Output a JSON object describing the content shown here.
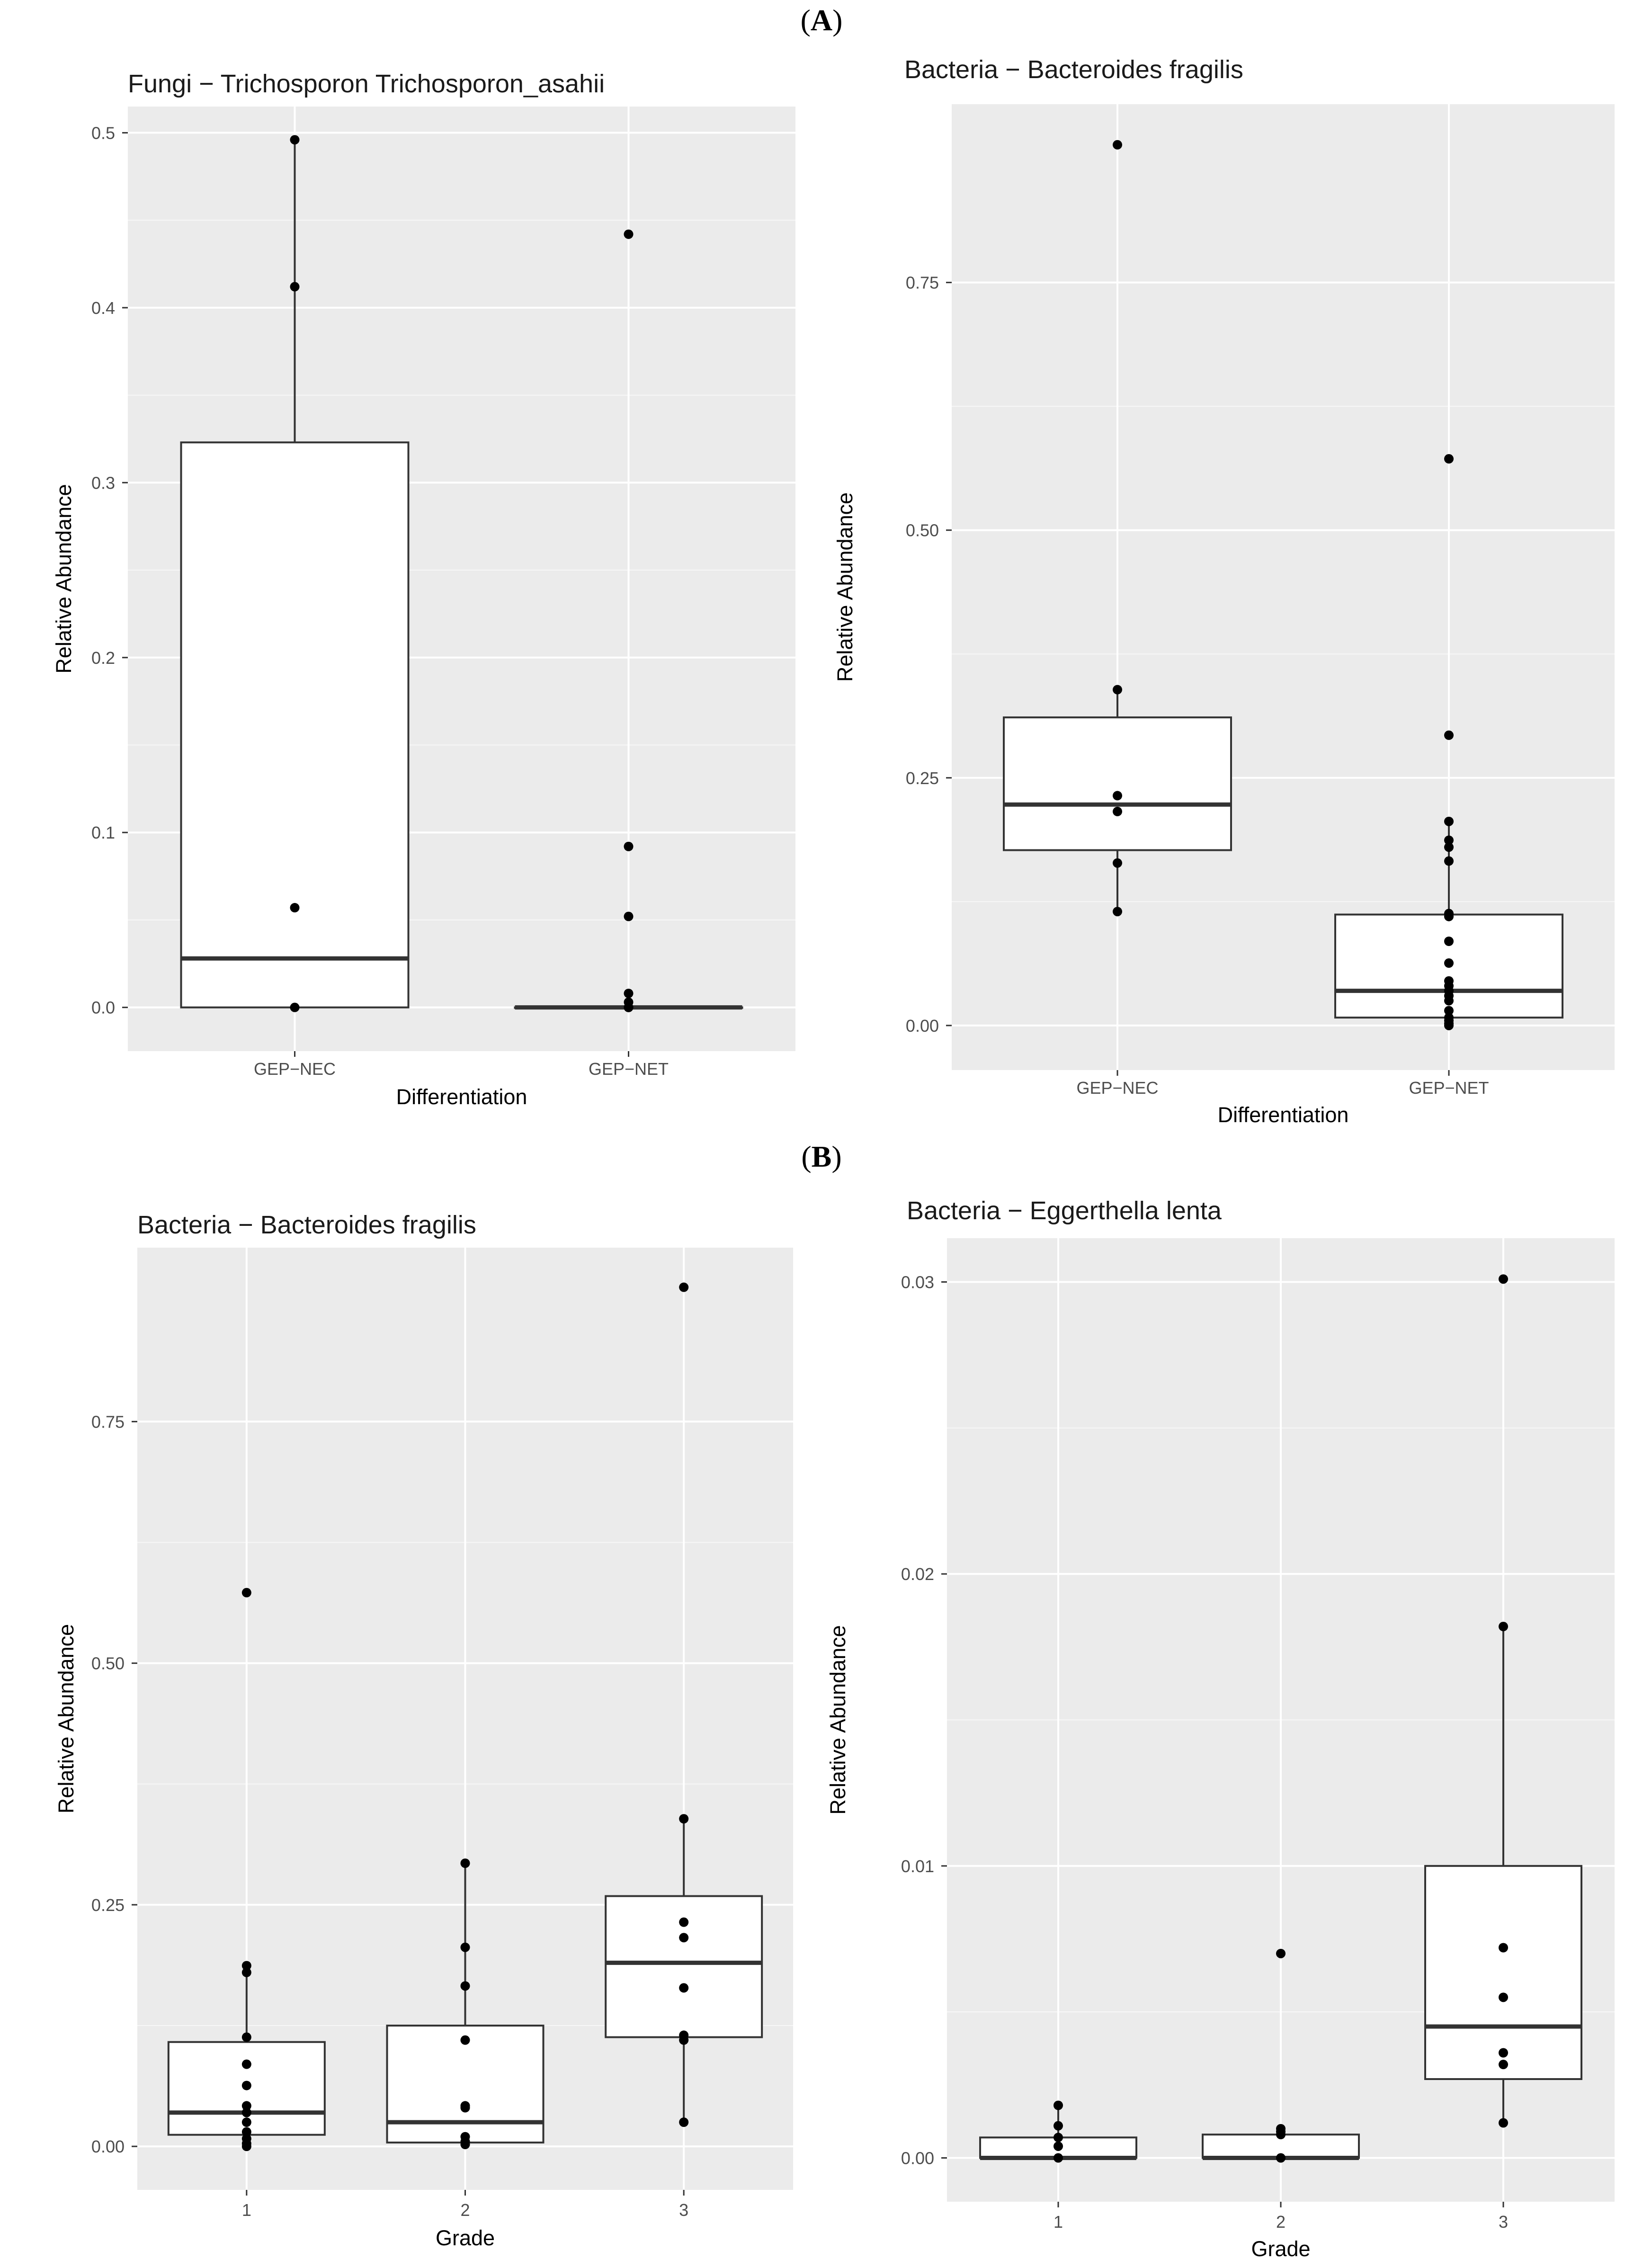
{
  "section_labels": {
    "a": "A",
    "b": "B"
  },
  "chart_data": [
    {
      "type": "boxplot",
      "title": "Fungi − Trichosporon Trichosporon_asahii",
      "xlabel": "Differentiation",
      "ylabel": "Relative Abundance",
      "categories": [
        "GEP−NEC",
        "GEP−NET"
      ],
      "ylim": [
        -0.025,
        0.515
      ],
      "yticks": [
        0.0,
        0.1,
        0.2,
        0.3,
        0.4,
        0.5
      ],
      "ytick_labels": [
        "0.0",
        "0.1",
        "0.2",
        "0.3",
        "0.4",
        "0.5"
      ],
      "boxes": [
        {
          "q1": 0.0,
          "median": 0.028,
          "q3": 0.323,
          "whisker_low": 0.0,
          "whisker_high": 0.496
        },
        {
          "q1": 0.0,
          "median": 0.0,
          "q3": 0.0,
          "whisker_low": 0.0,
          "whisker_high": 0.0
        }
      ],
      "points": [
        [
          0.496,
          0.412,
          0.057,
          0.0
        ],
        [
          0.442,
          0.092,
          0.052,
          0.008,
          0.003,
          0.0,
          0.0,
          0.0,
          0.0
        ]
      ]
    },
    {
      "type": "boxplot",
      "title": "Bacteria − Bacteroides fragilis",
      "xlabel": "Differentiation",
      "ylabel": "Relative Abundance",
      "categories": [
        "GEP−NEC",
        "GEP−NET"
      ],
      "ylim": [
        -0.045,
        0.93
      ],
      "yticks": [
        0.0,
        0.25,
        0.5,
        0.75
      ],
      "ytick_labels": [
        "0.00",
        "0.25",
        "0.50",
        "0.75"
      ],
      "boxes": [
        {
          "q1": 0.177,
          "median": 0.223,
          "q3": 0.311,
          "whisker_low": 0.115,
          "whisker_high": 0.339
        },
        {
          "q1": 0.008,
          "median": 0.035,
          "q3": 0.112,
          "whisker_low": 0.0,
          "whisker_high": 0.206
        }
      ],
      "points": [
        [
          0.889,
          0.339,
          0.232,
          0.216,
          0.164,
          0.115
        ],
        [
          0.572,
          0.293,
          0.206,
          0.187,
          0.18,
          0.166,
          0.113,
          0.11,
          0.085,
          0.063,
          0.045,
          0.04,
          0.035,
          0.03,
          0.025,
          0.015,
          0.008,
          0.005,
          0.002,
          0.0
        ]
      ]
    },
    {
      "type": "boxplot",
      "title": "Bacteria − Bacteroides fragilis",
      "xlabel": "Grade",
      "ylabel": "Relative Abundance",
      "categories": [
        "1",
        "2",
        "3"
      ],
      "ylim": [
        -0.045,
        0.93
      ],
      "yticks": [
        0.0,
        0.25,
        0.5,
        0.75
      ],
      "ytick_labels": [
        "0.00",
        "0.25",
        "0.50",
        "0.75"
      ],
      "boxes": [
        {
          "q1": 0.012,
          "median": 0.035,
          "q3": 0.108,
          "whisker_low": 0.0,
          "whisker_high": 0.187
        },
        {
          "q1": 0.004,
          "median": 0.025,
          "q3": 0.125,
          "whisker_low": 0.0,
          "whisker_high": 0.293
        },
        {
          "q1": 0.113,
          "median": 0.19,
          "q3": 0.259,
          "whisker_low": 0.025,
          "whisker_high": 0.339
        }
      ],
      "points": [
        [
          0.573,
          0.187,
          0.18,
          0.113,
          0.085,
          0.063,
          0.042,
          0.035,
          0.025,
          0.015,
          0.008,
          0.003,
          0.0
        ],
        [
          0.293,
          0.206,
          0.166,
          0.11,
          0.042,
          0.04,
          0.01,
          0.005,
          0.002
        ],
        [
          0.889,
          0.339,
          0.232,
          0.216,
          0.164,
          0.115,
          0.11,
          0.025
        ]
      ]
    },
    {
      "type": "boxplot",
      "title": "Bacteria − Eggerthella lenta",
      "xlabel": "Grade",
      "ylabel": "Relative Abundance",
      "categories": [
        "1",
        "2",
        "3"
      ],
      "ylim": [
        -0.0015,
        0.0315
      ],
      "yticks": [
        0.0,
        0.01,
        0.02,
        0.03
      ],
      "ytick_labels": [
        "0.00",
        "0.01",
        "0.02",
        "0.03"
      ],
      "boxes": [
        {
          "q1": 0.0,
          "median": 0.0,
          "q3": 0.0007,
          "whisker_low": 0.0,
          "whisker_high": 0.0018
        },
        {
          "q1": 0.0,
          "median": 0.0,
          "q3": 0.0008,
          "whisker_low": 0.0,
          "whisker_high": 0.0011
        },
        {
          "q1": 0.0027,
          "median": 0.0045,
          "q3": 0.01,
          "whisker_low": 0.0012,
          "whisker_high": 0.0182
        }
      ],
      "points": [
        [
          0.0018,
          0.0011,
          0.0007,
          0.0004,
          0.0
        ],
        [
          0.007,
          0.001,
          0.0009,
          0.0008,
          0.0
        ],
        [
          0.0301,
          0.0182,
          0.0072,
          0.0055,
          0.0036,
          0.0032,
          0.0012
        ]
      ]
    }
  ]
}
